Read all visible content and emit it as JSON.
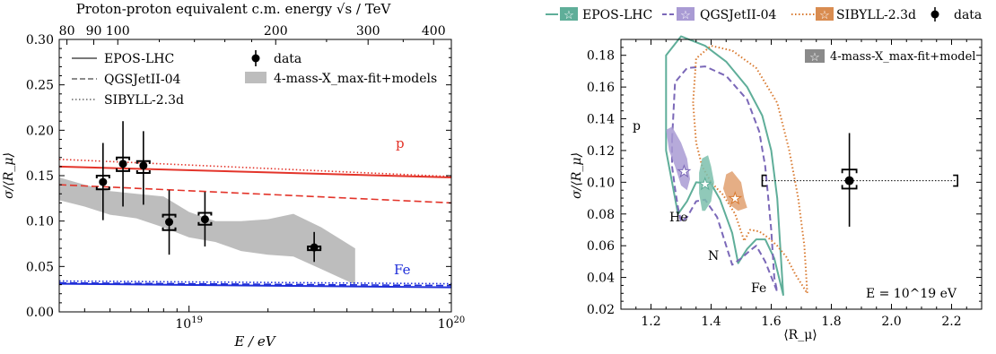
{
  "colors": {
    "epos": "#5fae99",
    "qgs": "#7b68b8",
    "sib": "#d97a30",
    "red": "#e3342a",
    "blue": "#1f2ed8",
    "band": "#bdbdbd"
  },
  "chart_data": [
    {
      "type": "scatter",
      "title": "",
      "xlabel": "E / eV",
      "ylabel": "σ/⟨R_μ⟩",
      "xscale": "log",
      "xlim": [
        3.2e+18,
        1e+20
      ],
      "ylim": [
        0.0,
        0.3
      ],
      "x_tick_labels": [
        "10^19",
        "10^20"
      ],
      "y_tick_labels": [
        "0.00",
        "0.05",
        "0.10",
        "0.15",
        "0.20",
        "0.25",
        "0.30"
      ],
      "top_axis": {
        "label": "Proton-proton equivalent c.m. energy √s / TeV",
        "tick_labels": [
          "80",
          "90",
          "100",
          "200",
          "300",
          "400"
        ],
        "tick_values": [
          80,
          90,
          100,
          200,
          300,
          400
        ]
      },
      "legend": {
        "models": [
          "EPOS-LHC",
          "QGSJetII-04",
          "SIBYLL-2.3d"
        ],
        "data_label": "data",
        "band_label": "4-mass-X_max-fit+models"
      },
      "annotations": [
        "p",
        "Fe"
      ],
      "data": [
        {
          "x": 4.7e+18,
          "y": 0.143,
          "yerr_stat": [
            0.042,
            0.043
          ],
          "sys": [
            0.135,
            0.15
          ]
        },
        {
          "x": 5.6e+18,
          "y": 0.163,
          "yerr_stat": [
            0.047,
            0.047
          ],
          "sys": [
            0.155,
            0.17
          ]
        },
        {
          "x": 6.7e+18,
          "y": 0.161,
          "yerr_stat": [
            0.043,
            0.038
          ],
          "sys": [
            0.153,
            0.166
          ]
        },
        {
          "x": 8.4e+18,
          "y": 0.099,
          "yerr_stat": [
            0.036,
            0.035
          ],
          "sys": [
            0.09,
            0.107
          ]
        },
        {
          "x": 1.15e+19,
          "y": 0.102,
          "yerr_stat": [
            0.03,
            0.03
          ],
          "sys": [
            0.096,
            0.109
          ]
        },
        {
          "x": 3e+19,
          "y": 0.071,
          "yerr_stat": [
            0.016,
            0.017
          ],
          "sys": [
            0.068,
            0.072
          ]
        }
      ],
      "band": {
        "x": [
          3.2e+18,
          4e+18,
          5e+18,
          6.3e+18,
          8e+18,
          1e+19,
          1.26e+19,
          1.58e+19,
          2e+19,
          2.5e+19,
          3.2e+19,
          4.3e+19
        ],
        "upper": [
          0.148,
          0.14,
          0.133,
          0.13,
          0.127,
          0.11,
          0.1,
          0.1,
          0.102,
          0.108,
          0.093,
          0.07
        ],
        "lower": [
          0.123,
          0.116,
          0.107,
          0.103,
          0.093,
          0.082,
          0.077,
          0.067,
          0.063,
          0.061,
          0.047,
          0.03
        ]
      },
      "series": [
        {
          "model": "EPOS-LHC",
          "primary": "p",
          "x": [
            3.2e+18,
            1e+20
          ],
          "y": [
            0.16,
            0.148
          ]
        },
        {
          "model": "QGSJetII-04",
          "primary": "p",
          "x": [
            3.2e+18,
            1e+20
          ],
          "y": [
            0.14,
            0.12
          ]
        },
        {
          "model": "SIBYLL-2.3d",
          "primary": "p",
          "x": [
            3.2e+18,
            1e+20
          ],
          "y": [
            0.168,
            0.149
          ]
        },
        {
          "model": "EPOS-LHC",
          "primary": "Fe",
          "x": [
            3.2e+18,
            1e+20
          ],
          "y": [
            0.031,
            0.027
          ]
        },
        {
          "model": "QGSJetII-04",
          "primary": "Fe",
          "x": [
            3.2e+18,
            1e+20
          ],
          "y": [
            0.032,
            0.029
          ]
        },
        {
          "model": "SIBYLL-2.3d",
          "primary": "Fe",
          "x": [
            3.2e+18,
            1e+20
          ],
          "y": [
            0.034,
            0.031
          ]
        }
      ]
    },
    {
      "type": "line",
      "title": "",
      "xlabel": "⟨R_μ⟩",
      "ylabel": "σ/⟨R_μ⟩",
      "xlim": [
        1.1,
        2.3
      ],
      "ylim": [
        0.02,
        0.19
      ],
      "x_tick_labels": [
        "1.2",
        "1.4",
        "1.6",
        "1.8",
        "2.0",
        "2.2"
      ],
      "y_tick_labels": [
        "0.02",
        "0.04",
        "0.06",
        "0.08",
        "0.10",
        "0.12",
        "0.14",
        "0.16",
        "0.18"
      ],
      "legend": {
        "entries": [
          "EPOS-LHC",
          "QGSJetII-04",
          "SIBYLL-2.3d",
          "data"
        ],
        "box_label": "4-mass-X_max-fit+model"
      },
      "annotations": [
        "p",
        "He",
        "N",
        "Fe",
        "E = 10^19 eV"
      ],
      "data": {
        "x": 1.86,
        "y": 0.101,
        "yerr": [
          0.029,
          0.03
        ],
        "sys_x": [
          1.57,
          2.22
        ],
        "sys_y": [
          0.096,
          0.108
        ]
      },
      "curves": [
        {
          "model": "EPOS-LHC",
          "points": [
            [
              1.25,
              0.14
            ],
            [
              1.25,
              0.18
            ],
            [
              1.3,
              0.192
            ],
            [
              1.38,
              0.186
            ],
            [
              1.45,
              0.176
            ],
            [
              1.52,
              0.16
            ],
            [
              1.57,
              0.142
            ],
            [
              1.6,
              0.12
            ],
            [
              1.62,
              0.09
            ],
            [
              1.63,
              0.06
            ],
            [
              1.64,
              0.029
            ],
            [
              1.61,
              0.052
            ],
            [
              1.58,
              0.064
            ],
            [
              1.55,
              0.064
            ],
            [
              1.52,
              0.058
            ],
            [
              1.49,
              0.049
            ],
            [
              1.47,
              0.068
            ],
            [
              1.43,
              0.089
            ],
            [
              1.4,
              0.099
            ],
            [
              1.35,
              0.1
            ],
            [
              1.32,
              0.088
            ],
            [
              1.29,
              0.08
            ],
            [
              1.27,
              0.1
            ],
            [
              1.25,
              0.12
            ],
            [
              1.25,
              0.14
            ]
          ]
        },
        {
          "model": "QGSJetII-04",
          "points": [
            [
              1.27,
              0.127
            ],
            [
              1.28,
              0.163
            ],
            [
              1.32,
              0.172
            ],
            [
              1.38,
              0.173
            ],
            [
              1.45,
              0.167
            ],
            [
              1.52,
              0.152
            ],
            [
              1.56,
              0.132
            ],
            [
              1.58,
              0.11
            ],
            [
              1.59,
              0.09
            ],
            [
              1.6,
              0.07
            ],
            [
              1.61,
              0.04
            ],
            [
              1.62,
              0.031
            ],
            [
              1.58,
              0.05
            ],
            [
              1.55,
              0.06
            ],
            [
              1.53,
              0.057
            ],
            [
              1.5,
              0.052
            ],
            [
              1.47,
              0.048
            ],
            [
              1.45,
              0.06
            ],
            [
              1.42,
              0.078
            ],
            [
              1.38,
              0.089
            ],
            [
              1.35,
              0.088
            ],
            [
              1.32,
              0.078
            ],
            [
              1.3,
              0.075
            ],
            [
              1.29,
              0.084
            ],
            [
              1.28,
              0.096
            ],
            [
              1.27,
              0.11
            ],
            [
              1.27,
              0.127
            ]
          ]
        },
        {
          "model": "SIBYLL-2.3d",
          "points": [
            [
              1.34,
              0.15
            ],
            [
              1.35,
              0.178
            ],
            [
              1.4,
              0.186
            ],
            [
              1.47,
              0.183
            ],
            [
              1.55,
              0.172
            ],
            [
              1.62,
              0.15
            ],
            [
              1.66,
              0.12
            ],
            [
              1.69,
              0.09
            ],
            [
              1.71,
              0.06
            ],
            [
              1.72,
              0.03
            ],
            [
              1.68,
              0.042
            ],
            [
              1.65,
              0.053
            ],
            [
              1.62,
              0.06
            ],
            [
              1.59,
              0.065
            ],
            [
              1.56,
              0.069
            ],
            [
              1.53,
              0.07
            ],
            [
              1.51,
              0.063
            ],
            [
              1.48,
              0.08
            ],
            [
              1.44,
              0.092
            ],
            [
              1.4,
              0.1
            ],
            [
              1.37,
              0.11
            ],
            [
              1.35,
              0.125
            ],
            [
              1.34,
              0.15
            ]
          ]
        }
      ],
      "blobs": [
        {
          "model": "EPOS-LHC",
          "center": [
            1.38,
            0.099
          ],
          "points": [
            [
              1.37,
              0.082
            ],
            [
              1.36,
              0.093
            ],
            [
              1.36,
              0.106
            ],
            [
              1.37,
              0.115
            ],
            [
              1.39,
              0.117
            ],
            [
              1.4,
              0.11
            ],
            [
              1.41,
              0.1
            ],
            [
              1.4,
              0.088
            ],
            [
              1.38,
              0.082
            ]
          ]
        },
        {
          "model": "QGSJetII-04",
          "center": [
            1.31,
            0.107
          ],
          "points": [
            [
              1.25,
              0.133
            ],
            [
              1.26,
              0.12
            ],
            [
              1.28,
              0.11
            ],
            [
              1.3,
              0.098
            ],
            [
              1.32,
              0.095
            ],
            [
              1.33,
              0.102
            ],
            [
              1.32,
              0.115
            ],
            [
              1.3,
              0.125
            ],
            [
              1.27,
              0.135
            ],
            [
              1.25,
              0.133
            ]
          ]
        },
        {
          "model": "SIBYLL-2.3d",
          "center": [
            1.48,
            0.09
          ],
          "points": [
            [
              1.44,
              0.096
            ],
            [
              1.45,
              0.105
            ],
            [
              1.47,
              0.107
            ],
            [
              1.5,
              0.1
            ],
            [
              1.51,
              0.09
            ],
            [
              1.52,
              0.084
            ],
            [
              1.49,
              0.082
            ],
            [
              1.46,
              0.086
            ],
            [
              1.44,
              0.096
            ]
          ]
        }
      ]
    }
  ]
}
